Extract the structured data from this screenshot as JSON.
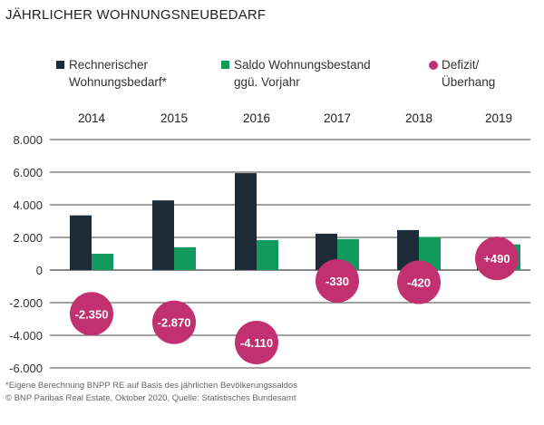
{
  "title": "JÄHRLICHER WOHNUNGSNEUBEDARF",
  "legend": [
    {
      "line1": "Rechnerischer",
      "line2": "Wohnungsbedarf*",
      "color": "#1c2b35",
      "shape": "square"
    },
    {
      "line1": "Saldo Wohnungsbestand",
      "line2": "ggü. Vorjahr",
      "color": "#0f9a5c",
      "shape": "square"
    },
    {
      "line1": "Defizit/",
      "line2": "Überhang",
      "color": "#c1306f",
      "shape": "circle"
    }
  ],
  "chart_data": {
    "type": "bar",
    "categories": [
      "2014",
      "2015",
      "2016",
      "2017",
      "2018",
      "2019"
    ],
    "series": [
      {
        "name": "Rechnerischer Wohnungsbedarf*",
        "values": [
          3350,
          4270,
          5940,
          2230,
          2450,
          1080
        ],
        "color": "#1c2b35"
      },
      {
        "name": "Saldo Wohnungsbestand ggü. Vorjahr",
        "values": [
          1000,
          1400,
          1830,
          1900,
          2030,
          1570
        ],
        "color": "#0f9a5c"
      }
    ],
    "deficit": {
      "name": "Defizit/Überhang",
      "values": [
        -2350,
        -2870,
        -4110,
        -330,
        -420,
        490
      ],
      "labels": [
        "-2.350",
        "-2.870",
        "-4.110",
        "-330",
        "-420",
        "+490"
      ],
      "color": "#c1306f"
    },
    "ylim": [
      -6000,
      8000
    ],
    "yticks": [
      8000,
      6000,
      4000,
      2000,
      0,
      -2000,
      -4000,
      -6000
    ],
    "ytick_labels": [
      "8.000",
      "6.000",
      "4.000",
      "2.000",
      "0",
      "-2.000",
      "-4.000",
      "-6.000"
    ],
    "grid": true,
    "legend_position": "top"
  },
  "footer": {
    "note": "*Eigene Berechnung BNPP RE auf Basis des jährlichen Bevölkerungssaldos",
    "source": "© BNP Paribas Real Estate, Oktober 2020, Quelle: Statistisches Bundesamt"
  }
}
